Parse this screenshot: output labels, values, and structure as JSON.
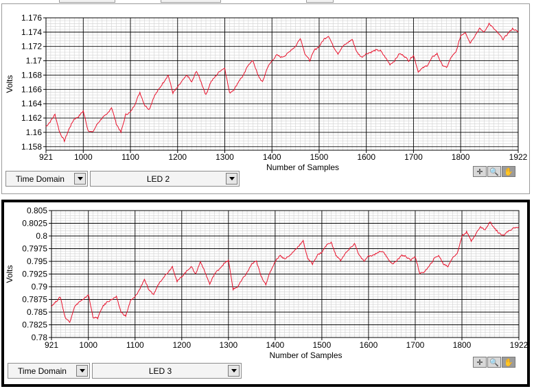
{
  "panels": [
    {
      "domain_label": "Time Domain",
      "channel_label": "LED 2",
      "chart_data": {
        "type": "line",
        "xlabel": "Number of Samples",
        "ylabel": "Volts",
        "xlim": [
          921,
          1922
        ],
        "ylim": [
          1.1575,
          1.176
        ],
        "x_ticks": [
          "921",
          "1000",
          "1100",
          "1200",
          "1300",
          "1400",
          "1500",
          "1600",
          "1700",
          "1800",
          "1922"
        ],
        "y_ticks": [
          "1.158",
          "1.16",
          "1.162",
          "1.164",
          "1.166",
          "1.168",
          "1.17",
          "1.172",
          "1.174",
          "1.176"
        ],
        "series_color": "#e8102a",
        "x": [
          921,
          930,
          940,
          950,
          960,
          970,
          980,
          990,
          1000,
          1010,
          1020,
          1030,
          1040,
          1050,
          1060,
          1070,
          1080,
          1090,
          1100,
          1110,
          1120,
          1130,
          1140,
          1150,
          1160,
          1170,
          1180,
          1190,
          1200,
          1210,
          1220,
          1230,
          1240,
          1250,
          1260,
          1270,
          1280,
          1290,
          1300,
          1310,
          1320,
          1330,
          1340,
          1350,
          1360,
          1370,
          1380,
          1390,
          1400,
          1410,
          1420,
          1430,
          1440,
          1450,
          1460,
          1470,
          1480,
          1490,
          1500,
          1510,
          1520,
          1530,
          1540,
          1550,
          1560,
          1570,
          1580,
          1590,
          1600,
          1610,
          1620,
          1630,
          1640,
          1650,
          1660,
          1670,
          1680,
          1690,
          1700,
          1710,
          1720,
          1730,
          1740,
          1750,
          1760,
          1770,
          1780,
          1790,
          1800,
          1810,
          1820,
          1830,
          1840,
          1850,
          1860,
          1870,
          1880,
          1890,
          1900,
          1910,
          1922
        ],
        "values": [
          1.1608,
          1.1615,
          1.1625,
          1.16,
          1.1588,
          1.1605,
          1.1618,
          1.1622,
          1.163,
          1.1603,
          1.16,
          1.1612,
          1.162,
          1.1625,
          1.1635,
          1.1612,
          1.16,
          1.1625,
          1.1628,
          1.164,
          1.1656,
          1.1638,
          1.1632,
          1.165,
          1.166,
          1.167,
          1.168,
          1.1655,
          1.1663,
          1.1672,
          1.168,
          1.167,
          1.1686,
          1.167,
          1.1652,
          1.167,
          1.1678,
          1.1686,
          1.169,
          1.1655,
          1.166,
          1.1672,
          1.168,
          1.1695,
          1.17,
          1.168,
          1.167,
          1.169,
          1.17,
          1.1708,
          1.1705,
          1.1708,
          1.1715,
          1.172,
          1.1732,
          1.171,
          1.17,
          1.1715,
          1.172,
          1.173,
          1.1735,
          1.172,
          1.171,
          1.172,
          1.1725,
          1.173,
          1.1712,
          1.1705,
          1.171,
          1.1712,
          1.1715,
          1.1714,
          1.1705,
          1.1695,
          1.17,
          1.171,
          1.1707,
          1.17,
          1.1708,
          1.1685,
          1.169,
          1.1694,
          1.1705,
          1.171,
          1.1695,
          1.169,
          1.1705,
          1.1712,
          1.1735,
          1.174,
          1.1725,
          1.1735,
          1.1745,
          1.174,
          1.1752,
          1.1745,
          1.1738,
          1.173,
          1.1738,
          1.1745,
          1.174
        ]
      }
    },
    {
      "domain_label": "Time Domain",
      "channel_label": "LED 3",
      "chart_data": {
        "type": "line",
        "xlabel": "Number of Samples",
        "ylabel": "Volts",
        "xlim": [
          921,
          1922
        ],
        "ylim": [
          0.78,
          0.805
        ],
        "x_ticks": [
          "921",
          "1000",
          "1100",
          "1200",
          "1300",
          "1400",
          "1500",
          "1600",
          "1700",
          "1800",
          "1922"
        ],
        "y_ticks": [
          "0.78",
          "0.7825",
          "0.785",
          "0.7875",
          "0.79",
          "0.7925",
          "0.795",
          "0.7975",
          "0.8",
          "0.8025",
          "0.805"
        ],
        "series_color": "#e8102a",
        "x": [
          921,
          930,
          940,
          950,
          960,
          970,
          980,
          990,
          1000,
          1010,
          1020,
          1030,
          1040,
          1050,
          1060,
          1070,
          1080,
          1090,
          1100,
          1110,
          1120,
          1130,
          1140,
          1150,
          1160,
          1170,
          1180,
          1190,
          1200,
          1210,
          1220,
          1230,
          1240,
          1250,
          1260,
          1270,
          1280,
          1290,
          1300,
          1310,
          1320,
          1330,
          1340,
          1350,
          1360,
          1370,
          1380,
          1390,
          1400,
          1410,
          1420,
          1430,
          1440,
          1450,
          1460,
          1470,
          1480,
          1490,
          1500,
          1510,
          1520,
          1530,
          1540,
          1550,
          1560,
          1570,
          1580,
          1590,
          1600,
          1610,
          1620,
          1630,
          1640,
          1650,
          1660,
          1670,
          1680,
          1690,
          1700,
          1710,
          1720,
          1730,
          1740,
          1750,
          1760,
          1770,
          1780,
          1790,
          1800,
          1810,
          1820,
          1830,
          1840,
          1850,
          1860,
          1870,
          1880,
          1890,
          1900,
          1910,
          1922
        ],
        "values": [
          0.7862,
          0.787,
          0.788,
          0.784,
          0.783,
          0.786,
          0.787,
          0.7875,
          0.7885,
          0.784,
          0.7838,
          0.786,
          0.787,
          0.7875,
          0.788,
          0.785,
          0.7842,
          0.7872,
          0.788,
          0.7895,
          0.7915,
          0.7892,
          0.7885,
          0.7905,
          0.7918,
          0.7928,
          0.794,
          0.791,
          0.792,
          0.793,
          0.794,
          0.7925,
          0.795,
          0.7928,
          0.7905,
          0.7925,
          0.7935,
          0.7945,
          0.7952,
          0.7895,
          0.79,
          0.7915,
          0.7928,
          0.7945,
          0.795,
          0.792,
          0.7905,
          0.793,
          0.795,
          0.7962,
          0.7955,
          0.796,
          0.797,
          0.798,
          0.799,
          0.7955,
          0.7945,
          0.7962,
          0.7968,
          0.7982,
          0.7988,
          0.7962,
          0.7952,
          0.7965,
          0.7975,
          0.7985,
          0.7962,
          0.795,
          0.796,
          0.7962,
          0.7968,
          0.797,
          0.7958,
          0.7945,
          0.795,
          0.7962,
          0.796,
          0.7952,
          0.796,
          0.7925,
          0.793,
          0.794,
          0.7955,
          0.7962,
          0.7945,
          0.794,
          0.7958,
          0.7965,
          0.8,
          0.8008,
          0.799,
          0.8005,
          0.8018,
          0.8012,
          0.8028,
          0.8015,
          0.8005,
          0.8002,
          0.801,
          0.8015,
          0.8018
        ]
      }
    }
  ]
}
